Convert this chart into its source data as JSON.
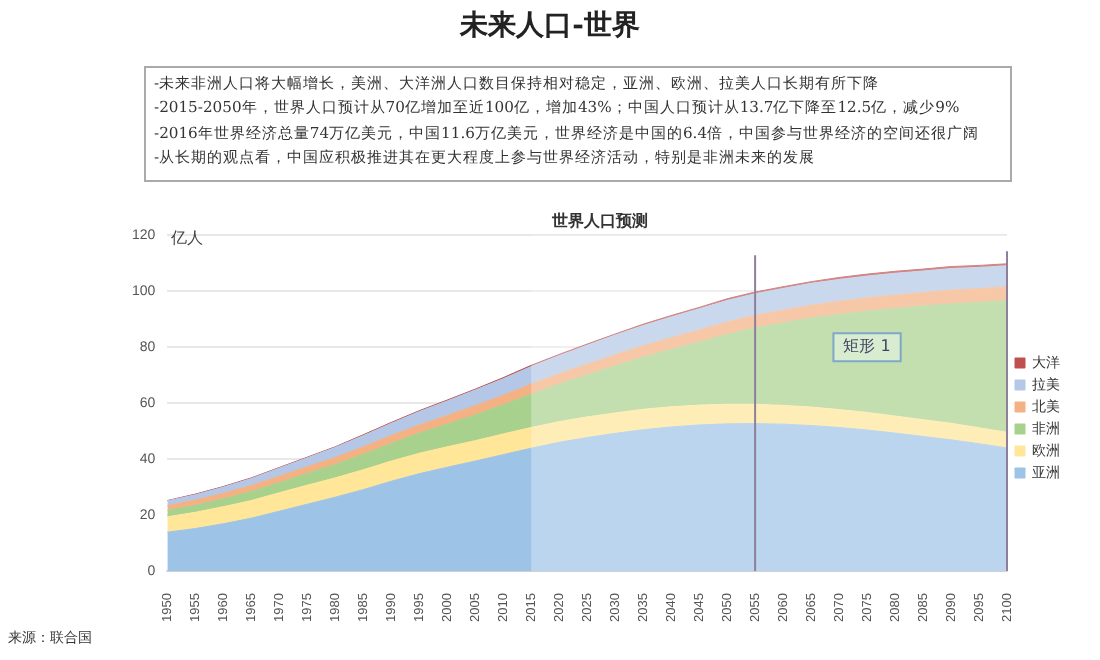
{
  "chart_data": {
    "type": "area",
    "stacked": true,
    "title": "未来人口-世界",
    "subtitle": "-未来非洲人口将大幅增长，美洲、大洋洲人口数目保持相对稳定，亚洲、欧洲、拉美人口长期有所下降\n-2015-2050年，世界人口预计从70亿增加至近100亿，增加43%；中国人口预计从13.7亿下降至12.5亿，减少9%\n-2016年世界经济总量74万亿美元，中国11.6万亿美元，世界经济是中国的6.4倍，中国参与世界经济的空间还很广阔\n-从长期的观点看，中国应积极推进其在更大程度上参与世界经济活动，特别是非洲未来的发展",
    "ylabel": "亿人",
    "annotations": [
      "世界人口预测",
      "来源：联合国",
      {
        "text": "矩形 1",
        "x": "2075",
        "y": 80
      }
    ],
    "categories": [
      "1950",
      "1955",
      "1960",
      "1965",
      "1970",
      "1975",
      "1980",
      "1985",
      "1990",
      "1995",
      "2000",
      "2005",
      "2010",
      "2015",
      "2020",
      "2025",
      "2030",
      "2035",
      "2040",
      "2045",
      "2050",
      "2055",
      "2060",
      "2065",
      "2070",
      "2075",
      "2080",
      "2085",
      "2090",
      "2095",
      "2100"
    ],
    "series": [
      {
        "name": "亚洲",
        "color": "#9dc3e6",
        "values": [
          13.9,
          15.2,
          16.9,
          18.9,
          21.4,
          23.9,
          26.4,
          29.1,
          32.1,
          34.8,
          37.1,
          39.3,
          41.6,
          43.9,
          46.0,
          47.7,
          49.2,
          50.5,
          51.5,
          52.2,
          52.6,
          52.7,
          52.5,
          52.0,
          51.3,
          50.4,
          49.3,
          48.1,
          46.9,
          45.5,
          44.0
        ]
      },
      {
        "name": "欧洲",
        "color": "#ffe699",
        "values": [
          5.5,
          5.8,
          6.1,
          6.3,
          6.6,
          6.8,
          6.9,
          7.1,
          7.2,
          7.3,
          7.3,
          7.3,
          7.4,
          7.4,
          7.4,
          7.4,
          7.3,
          7.3,
          7.2,
          7.1,
          7.0,
          6.9,
          6.7,
          6.6,
          6.4,
          6.3,
          6.1,
          6.0,
          5.9,
          5.7,
          5.6
        ]
      },
      {
        "name": "非洲",
        "color": "#a9d18e",
        "values": [
          2.3,
          2.5,
          2.8,
          3.2,
          3.6,
          4.2,
          4.8,
          5.5,
          6.3,
          7.2,
          8.1,
          9.2,
          10.4,
          11.9,
          13.4,
          15.0,
          16.8,
          18.6,
          20.5,
          22.5,
          25.0,
          27.3,
          29.5,
          31.8,
          34.0,
          36.2,
          38.4,
          40.6,
          42.7,
          44.8,
          47.0
        ]
      },
      {
        "name": "北美",
        "color": "#f4b183",
        "values": [
          1.7,
          1.9,
          2.0,
          2.2,
          2.3,
          2.4,
          2.5,
          2.7,
          2.8,
          2.9,
          3.1,
          3.3,
          3.4,
          3.6,
          3.7,
          3.8,
          4.0,
          4.1,
          4.2,
          4.3,
          4.4,
          4.5,
          4.5,
          4.6,
          4.7,
          4.7,
          4.8,
          4.8,
          4.9,
          4.9,
          5.0
        ]
      },
      {
        "name": "拉美",
        "color": "#b4c7e7",
        "values": [
          1.7,
          1.9,
          2.2,
          2.5,
          2.9,
          3.2,
          3.6,
          4.0,
          4.4,
          4.8,
          5.2,
          5.6,
          5.9,
          6.3,
          6.5,
          6.8,
          7.0,
          7.2,
          7.4,
          7.6,
          7.7,
          7.7,
          7.8,
          7.8,
          7.8,
          7.8,
          7.8,
          7.7,
          7.7,
          7.6,
          7.5
        ]
      },
      {
        "name": "大洋",
        "color": "#c0504d",
        "values": [
          0.1,
          0.2,
          0.2,
          0.2,
          0.2,
          0.2,
          0.2,
          0.3,
          0.3,
          0.3,
          0.3,
          0.3,
          0.4,
          0.4,
          0.4,
          0.4,
          0.4,
          0.5,
          0.5,
          0.5,
          0.6,
          0.6,
          0.6,
          0.6,
          0.7,
          0.7,
          0.7,
          0.7,
          0.7,
          0.7,
          0.7
        ]
      }
    ],
    "ylim": [
      0,
      120
    ],
    "yticks": [
      0,
      20,
      40,
      60,
      80,
      100,
      120
    ],
    "grid": "y",
    "legend": "right",
    "ref_lines": [
      {
        "axis": "x",
        "value": "2055",
        "color": "#8e7f9a"
      }
    ],
    "bands": [
      {
        "axis": "x",
        "from": "2015",
        "to": "2100",
        "color": "#ffffff"
      }
    ]
  }
}
